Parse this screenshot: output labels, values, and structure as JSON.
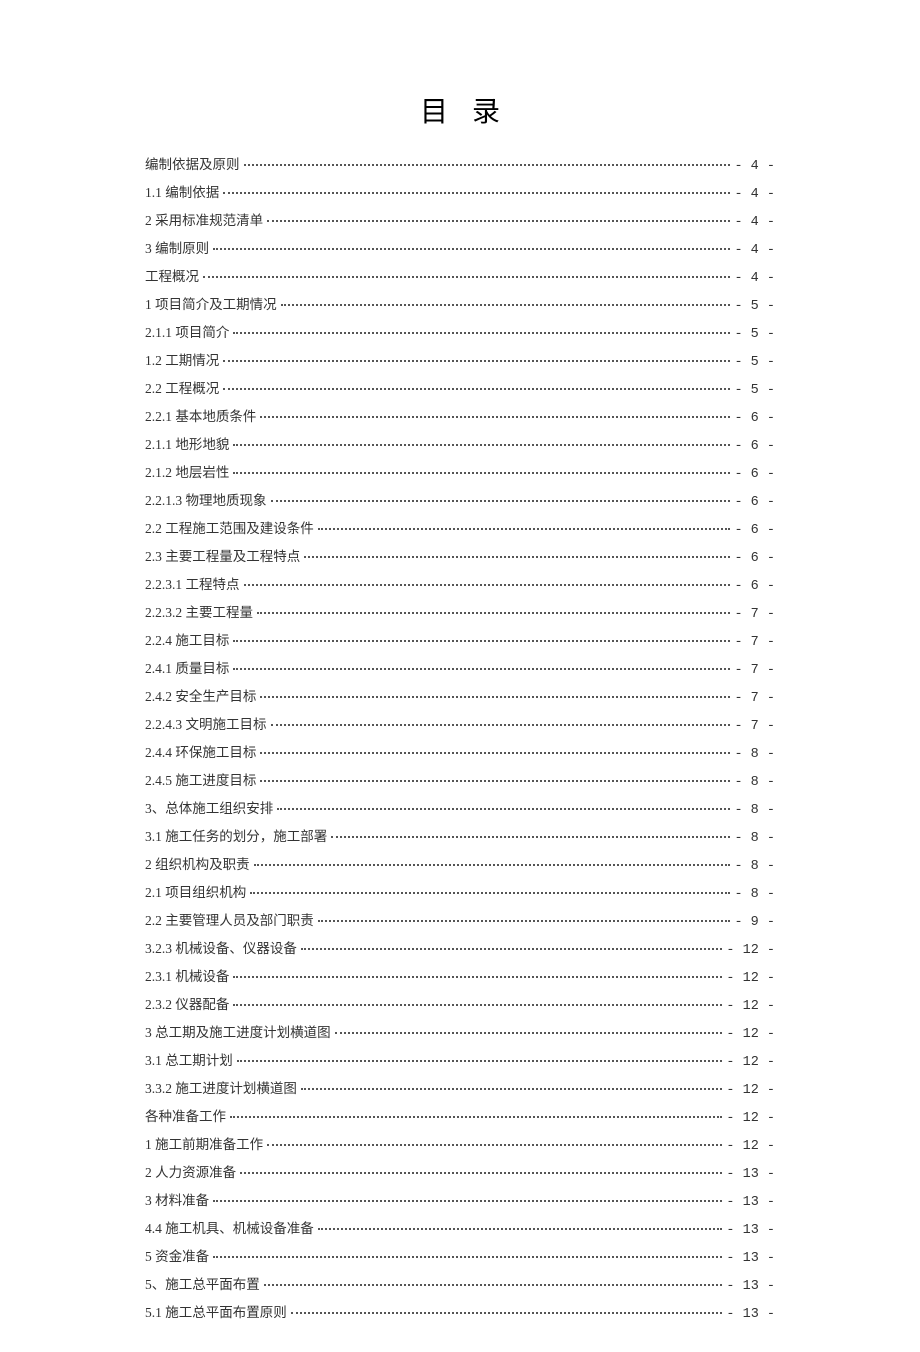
{
  "title": "目录",
  "text_color": "#333333",
  "dot_color": "#555555",
  "background_color": "#ffffff",
  "title_fontsize": 28,
  "entry_fontsize": 13.5,
  "entries": [
    {
      "label": "编制依据及原则",
      "page": "- 4 -"
    },
    {
      "label": "1.1 编制依据",
      "page": "- 4 -"
    },
    {
      "label": "2 采用标准规范清单",
      "page": "- 4 -"
    },
    {
      "label": "3 编制原则",
      "page": "- 4 -"
    },
    {
      "label": "工程概况",
      "page": "- 4 -"
    },
    {
      "label": "1 项目简介及工期情况",
      "page": "- 5 -"
    },
    {
      "label": "2.1.1 项目简介",
      "page": "- 5 -"
    },
    {
      "label": "1.2 工期情况",
      "page": "- 5 -"
    },
    {
      "label": "2.2 工程概况",
      "page": "- 5 -"
    },
    {
      "label": "2.2.1 基本地质条件",
      "page": "- 6 -"
    },
    {
      "label": "2.1.1 地形地貌",
      "page": "- 6 -"
    },
    {
      "label": "2.1.2 地层岩性",
      "page": "- 6 -"
    },
    {
      "label": "2.2.1.3 物理地质现象",
      "page": "- 6 -"
    },
    {
      "label": "2.2  工程施工范围及建设条件",
      "page": "- 6 -"
    },
    {
      "label": "2.3 主要工程量及工程特点",
      "page": "- 6 -"
    },
    {
      "label": "2.2.3.1 工程特点",
      "page": "- 6 -"
    },
    {
      "label": "2.2.3.2 主要工程量",
      "page": "- 7 -"
    },
    {
      "label": "2.2.4 施工目标",
      "page": "- 7 -"
    },
    {
      "label": "2.4.1 质量目标",
      "page": "- 7 -"
    },
    {
      "label": "2.4.2 安全生产目标",
      "page": "- 7 -"
    },
    {
      "label": "2.2.4.3 文明施工目标",
      "page": "- 7 -"
    },
    {
      "label": "2.4.4 环保施工目标",
      "page": "- 8 -"
    },
    {
      "label": "2.4.5 施工进度目标",
      "page": "- 8 -"
    },
    {
      "label": "3、总体施工组织安排",
      "page": "- 8 -"
    },
    {
      "label": "3.1 施工任务的划分，施工部署",
      "page": "- 8 -"
    },
    {
      "label": "2 组织机构及职责",
      "page": "- 8 -"
    },
    {
      "label": "2.1 项目组织机构",
      "page": "- 8 -"
    },
    {
      "label": "2.2 主要管理人员及部门职责",
      "page": "- 9 -"
    },
    {
      "label": "3.2.3 机械设备、仪器设备",
      "page": "- 12 -"
    },
    {
      "label": "2.3.1 机械设备",
      "page": "- 12 -"
    },
    {
      "label": "2.3.2 仪器配备",
      "page": "- 12 -"
    },
    {
      "label": "3  总工期及施工进度计划横道图",
      "page": "- 12 -"
    },
    {
      "label": "3.1  总工期计划",
      "page": "- 12 -"
    },
    {
      "label": "3.3.2  施工进度计划横道图",
      "page": "- 12 -"
    },
    {
      "label": "各种准备工作",
      "page": "- 12 -"
    },
    {
      "label": "1 施工前期准备工作",
      "page": "- 12 -"
    },
    {
      "label": "2 人力资源准备",
      "page": "- 13 -"
    },
    {
      "label": "3 材料准备",
      "page": "- 13 -"
    },
    {
      "label": "4.4 施工机具、机械设备准备",
      "page": "- 13 -"
    },
    {
      "label": "5 资金准备",
      "page": "- 13 -"
    },
    {
      "label": "5、施工总平面布置",
      "page": "- 13 -"
    },
    {
      "label": "5.1 施工总平面布置原则",
      "page": "- 13 -"
    }
  ]
}
